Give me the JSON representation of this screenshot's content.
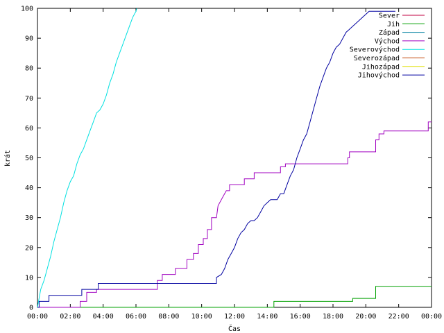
{
  "chart_data": {
    "type": "line",
    "title": "",
    "xlabel": "Čas",
    "ylabel": "krát",
    "xlim": [
      0,
      24
    ],
    "ylim": [
      0,
      100
    ],
    "x_ticks": [
      {
        "value": 0,
        "label": "00:00"
      },
      {
        "value": 2,
        "label": "02:00"
      },
      {
        "value": 4,
        "label": "04:00"
      },
      {
        "value": 6,
        "label": "06:00"
      },
      {
        "value": 8,
        "label": "08:00"
      },
      {
        "value": 10,
        "label": "10:00"
      },
      {
        "value": 12,
        "label": "12:00"
      },
      {
        "value": 14,
        "label": "14:00"
      },
      {
        "value": 16,
        "label": "16:00"
      },
      {
        "value": 18,
        "label": "18:00"
      },
      {
        "value": 20,
        "label": "20:00"
      },
      {
        "value": 22,
        "label": "22:00"
      },
      {
        "value": 24,
        "label": "00:00"
      }
    ],
    "y_ticks": [
      0,
      10,
      20,
      30,
      40,
      50,
      60,
      70,
      80,
      90,
      100
    ],
    "grid": false,
    "legend_position": "top-right",
    "x_unit": "hours",
    "series": [
      {
        "name": "Sever",
        "color": "#c00040",
        "x": [],
        "y": []
      },
      {
        "name": "Jih",
        "color": "#00a000",
        "x": [
          0,
          14.4,
          14.4,
          19.2,
          19.2,
          20.6,
          20.6,
          24
        ],
        "y": [
          0,
          0,
          2,
          2,
          3,
          3,
          7,
          7
        ]
      },
      {
        "name": "Západ",
        "color": "#0080a0",
        "x": [],
        "y": []
      },
      {
        "name": "Východ",
        "color": "#a000c0",
        "x": [
          0,
          2.6,
          2.6,
          3.0,
          3.0,
          3.6,
          3.6,
          4.0,
          4.0,
          7.3,
          7.3,
          7.6,
          7.6,
          8.4,
          8.4,
          9.1,
          9.1,
          9.5,
          9.5,
          9.8,
          9.8,
          10.1,
          10.1,
          10.35,
          10.35,
          10.6,
          10.6,
          10.9,
          11.0,
          11.3,
          11.5,
          11.7,
          11.7,
          12.6,
          12.6,
          13.2,
          13.2,
          14.8,
          14.8,
          15.1,
          15.1,
          15.9,
          15.9,
          18.9,
          18.9,
          19.0,
          19.0,
          20.6,
          20.6,
          20.8,
          20.8,
          21.1,
          21.1,
          21.7,
          21.7,
          23.8,
          23.8,
          24
        ],
        "y": [
          0,
          0,
          2,
          2,
          5,
          5,
          6,
          6,
          6,
          6,
          9,
          9,
          11,
          11,
          13,
          13,
          16,
          16,
          18,
          18,
          21,
          21,
          23,
          23,
          26,
          26,
          30,
          30,
          34,
          37,
          39,
          39,
          41,
          41,
          43,
          43,
          45,
          45,
          47,
          47,
          48,
          48,
          48,
          48,
          50,
          50,
          52,
          52,
          56,
          56,
          58,
          58,
          59,
          59,
          59,
          59,
          62,
          62
        ]
      },
      {
        "name": "Severovýchod",
        "color": "#00e0e0",
        "x": [
          0,
          0.2,
          0.4,
          0.6,
          0.8,
          1.0,
          1.2,
          1.4,
          1.6,
          1.8,
          2.0,
          2.2,
          2.4,
          2.6,
          2.8,
          3.0,
          3.2,
          3.4,
          3.6,
          3.8,
          4.0,
          4.2,
          4.4,
          4.6,
          4.8,
          5.0,
          5.2,
          5.4,
          5.6,
          5.8,
          6.0,
          6.05
        ],
        "y": [
          0,
          6,
          9,
          13,
          17,
          22,
          26,
          30,
          35,
          39,
          42,
          44,
          48,
          51,
          53,
          56,
          59,
          62,
          65,
          66,
          68,
          71,
          75,
          78,
          82,
          85,
          88,
          91,
          94,
          97,
          99,
          100
        ]
      },
      {
        "name": "Severozápad",
        "color": "#c04000",
        "x": [],
        "y": []
      },
      {
        "name": "Jihozápad",
        "color": "#e0e000",
        "x": [],
        "y": []
      },
      {
        "name": "Jihovýchod",
        "color": "#0000a0",
        "x": [
          0,
          0.1,
          0.1,
          0.7,
          0.7,
          2.7,
          2.7,
          3.7,
          3.7,
          10.9,
          10.9,
          11.2,
          11.4,
          11.6,
          11.8,
          12.0,
          12.2,
          12.4,
          12.6,
          12.8,
          13.0,
          13.2,
          13.4,
          13.6,
          13.8,
          14.0,
          14.2,
          14.4,
          14.6,
          14.8,
          15.0,
          15.2,
          15.4,
          15.6,
          15.8,
          16.0,
          16.2,
          16.4,
          16.6,
          16.8,
          17.0,
          17.2,
          17.4,
          17.6,
          17.8,
          18.0,
          18.2,
          18.4,
          18.6,
          18.8,
          19.0,
          19.2,
          19.4,
          19.6,
          19.8,
          20.0,
          20.2,
          20.4,
          20.6,
          20.8,
          21.0,
          21.2,
          21.4,
          21.6,
          21.8
        ],
        "y": [
          0,
          0,
          2,
          2,
          4,
          4,
          6,
          6,
          8,
          8,
          10,
          11,
          13,
          16,
          18,
          20,
          23,
          25,
          26,
          28,
          29,
          29,
          30,
          32,
          34,
          35,
          36,
          36,
          36,
          38,
          38,
          41,
          44,
          46,
          50,
          53,
          56,
          58,
          62,
          66,
          70,
          74,
          77,
          80,
          82,
          85,
          87,
          88,
          90,
          92,
          93,
          94,
          95,
          96,
          97,
          98,
          99,
          99,
          99,
          99,
          99,
          99,
          99,
          99,
          99
        ]
      }
    ]
  }
}
